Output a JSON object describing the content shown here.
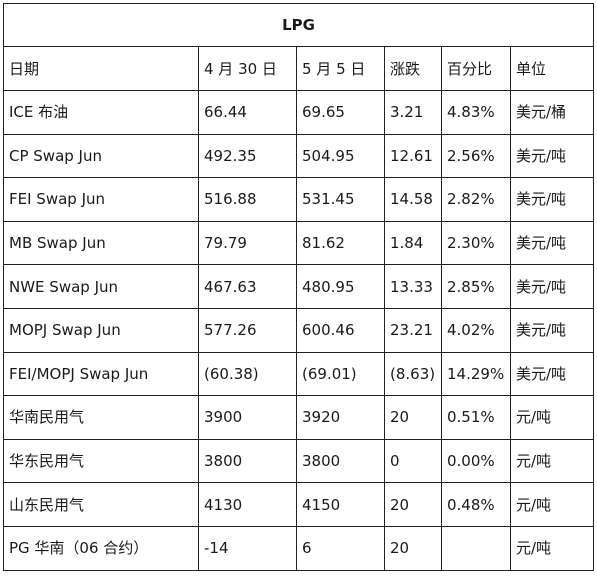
{
  "table": {
    "title": "LPG",
    "headers": [
      "日期",
      "4 月 30 日",
      "5 月 5 日",
      "涨跌",
      "百分比",
      "单位"
    ],
    "rows": [
      [
        "ICE 布油",
        "66.44",
        "69.65",
        "3.21",
        "4.83%",
        "美元/桶"
      ],
      [
        "CP Swap Jun",
        "492.35",
        "504.95",
        "12.61",
        "2.56%",
        "美元/吨"
      ],
      [
        "FEI Swap Jun",
        "516.88",
        "531.45",
        "14.58",
        "2.82%",
        "美元/吨"
      ],
      [
        "MB Swap Jun",
        "79.79",
        "81.62",
        "1.84",
        "2.30%",
        "美元/吨"
      ],
      [
        "NWE Swap Jun",
        "467.63",
        "480.95",
        "13.33",
        "2.85%",
        "美元/吨"
      ],
      [
        "MOPJ Swap Jun",
        "577.26",
        "600.46",
        "23.21",
        "4.02%",
        "美元/吨"
      ],
      [
        "FEI/MOPJ Swap Jun",
        "(60.38)",
        "(69.01)",
        "(8.63)",
        "14.29%",
        "美元/吨"
      ],
      [
        "华南民用气",
        "3900",
        "3920",
        "20",
        "0.51%",
        "元/吨"
      ],
      [
        "华东民用气",
        "3800",
        "3800",
        "0",
        "0.00%",
        "元/吨"
      ],
      [
        "山东民用气",
        "4130",
        "4150",
        "20",
        "0.48%",
        "元/吨"
      ],
      [
        "PG 华南（06 合约）",
        "-14",
        "6",
        "20",
        "",
        "元/吨"
      ]
    ]
  }
}
